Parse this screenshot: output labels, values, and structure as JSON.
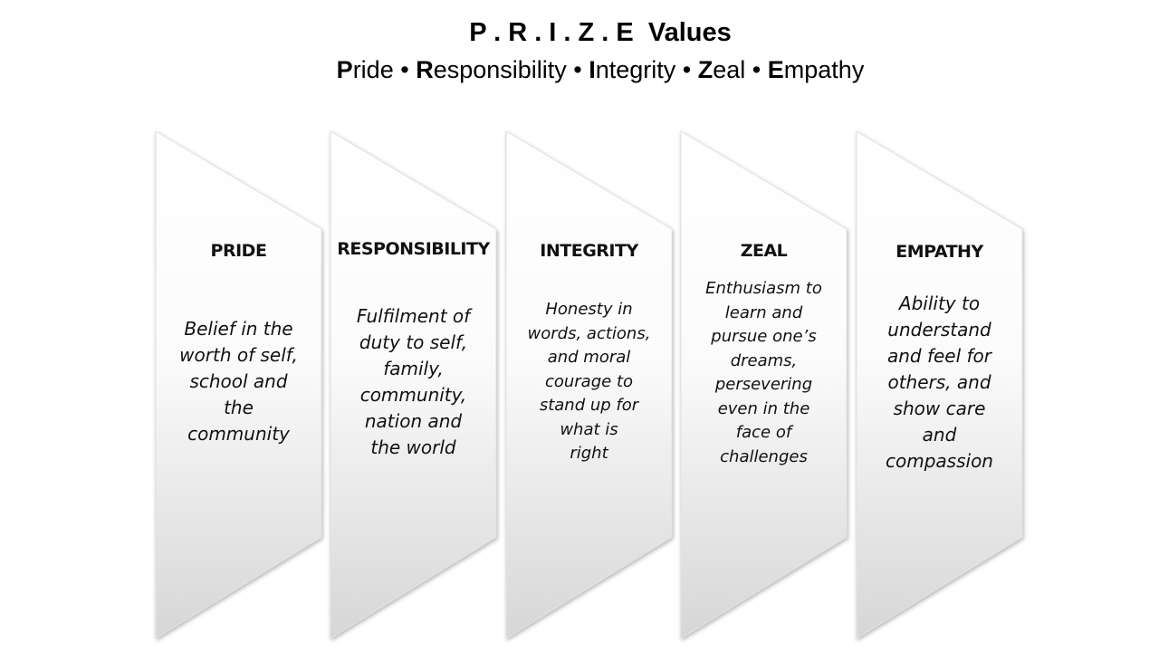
{
  "title": "P . R . I . Z . E  Values",
  "subtitle": [
    {
      "initial": "P",
      "rest": "ride"
    },
    {
      "initial": "R",
      "rest": "esponsibility"
    },
    {
      "initial": "I",
      "rest": "ntegrity"
    },
    {
      "initial": "Z",
      "rest": "eal"
    },
    {
      "initial": "E",
      "rest": "mpathy"
    }
  ],
  "subtitle_separator": " • ",
  "panels": [
    {
      "title": "PRIDE",
      "body": [
        "Belief in the",
        "worth of self,",
        "school and",
        "the",
        "community"
      ]
    },
    {
      "title": "RESPONSIBILITY",
      "body": [
        "Fulfilment of",
        "duty to self,",
        "family,",
        "community,",
        "nation and",
        "the world"
      ]
    },
    {
      "title": "INTEGRITY",
      "body": [
        "Honesty in",
        "words, actions,",
        "and moral",
        "courage to",
        "stand up for",
        "what is",
        "right"
      ]
    },
    {
      "title": "ZEAL",
      "body": [
        "Enthusiasm to",
        "learn and",
        "pursue one’s",
        "dreams,",
        "persevering",
        "even in the",
        "face of",
        "challenges"
      ]
    },
    {
      "title": "EMPATHY",
      "body": [
        "Ability to",
        "understand",
        "and feel for",
        "others, and",
        "show care",
        "and",
        "compassion"
      ]
    }
  ]
}
